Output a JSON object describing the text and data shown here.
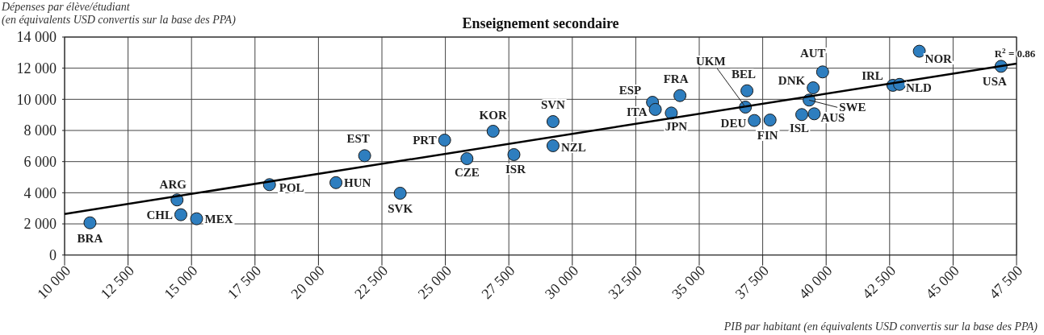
{
  "chart_data": {
    "type": "scatter",
    "title": "Enseignement secondaire",
    "ylabel": "Dépenses par élève/étudiant\n(en équivalents USD convertis sur la base des PPA)",
    "xlabel": "PIB par habitant (en équivalents USD convertis sur la base des PPA)",
    "xlim": [
      10000,
      47500
    ],
    "xticks": [
      {
        "value": 10000,
        "label": "10 000"
      },
      {
        "value": 12500,
        "label": "12 500"
      },
      {
        "value": 15000,
        "label": "15 000"
      },
      {
        "value": 17500,
        "label": "17 500"
      },
      {
        "value": 20000,
        "label": "20 000"
      },
      {
        "value": 22500,
        "label": "22 500"
      },
      {
        "value": 25000,
        "label": "25 000"
      },
      {
        "value": 27500,
        "label": "27 500"
      },
      {
        "value": 30000,
        "label": "30 000"
      },
      {
        "value": 32500,
        "label": "32 500"
      },
      {
        "value": 35000,
        "label": "35 000"
      },
      {
        "value": 37500,
        "label": "37 500"
      },
      {
        "value": 40000,
        "label": "40 000"
      },
      {
        "value": 42500,
        "label": "42 500"
      },
      {
        "value": 45000,
        "label": "45 000"
      },
      {
        "value": 47500,
        "label": "47 500"
      }
    ],
    "ylim": [
      0,
      14000
    ],
    "yticks": [
      0,
      {
        "value": 2000,
        "label": "2 000"
      },
      {
        "value": 4000,
        "label": "4 000"
      },
      {
        "value": 6000,
        "label": "6 000"
      },
      {
        "value": 8000,
        "label": "8 000"
      },
      {
        "value": 10000,
        "label": "10 000"
      },
      {
        "value": 12000,
        "label": "12 000"
      },
      {
        "value": 14000,
        "label": "14 000"
      }
    ],
    "grid": true,
    "series": [
      {
        "color": "#2e7ebf",
        "marker": "circle",
        "x": [
          11000,
          14430,
          14580,
          15200,
          18070,
          20690,
          21820,
          23220,
          24970,
          25850,
          26880,
          27700,
          29240,
          29240,
          33160,
          33270,
          33900,
          34240,
          36880,
          36820,
          37170,
          37790,
          39040,
          39530,
          39330,
          39490,
          39860,
          42630,
          42890,
          43670,
          46890
        ],
        "values": [
          2070,
          3540,
          2590,
          2330,
          4520,
          4650,
          6380,
          3970,
          7380,
          6190,
          7950,
          6450,
          8570,
          7020,
          9810,
          9350,
          9120,
          10240,
          10550,
          9500,
          8640,
          8670,
          9020,
          9070,
          9950,
          10740,
          11760,
          10900,
          10960,
          13090,
          12120
        ]
      },
      {
        "type": "line",
        "color": "#000000",
        "x": [
          10000,
          47500
        ],
        "values": [
          2640,
          12290
        ]
      }
    ],
    "annotations": [
      {
        "text": "BRA",
        "x": 11000,
        "y": 2070
      },
      {
        "text": "ARG",
        "x": 14430,
        "y": 3540
      },
      {
        "text": "CHL",
        "x": 14580,
        "y": 2590
      },
      {
        "text": "MEX",
        "x": 15200,
        "y": 2330
      },
      {
        "text": "POL",
        "x": 18070,
        "y": 4520
      },
      {
        "text": "HUN",
        "x": 20690,
        "y": 4650
      },
      {
        "text": "EST",
        "x": 21820,
        "y": 6380
      },
      {
        "text": "SVK",
        "x": 23220,
        "y": 3970
      },
      {
        "text": "PRT",
        "x": 24970,
        "y": 7380
      },
      {
        "text": "CZE",
        "x": 25850,
        "y": 6190
      },
      {
        "text": "KOR",
        "x": 26880,
        "y": 7950
      },
      {
        "text": "ISR",
        "x": 27700,
        "y": 6450
      },
      {
        "text": "SVN",
        "x": 29240,
        "y": 8570
      },
      {
        "text": "NZL",
        "x": 29240,
        "y": 7020
      },
      {
        "text": "ESP",
        "x": 33160,
        "y": 9810
      },
      {
        "text": "ITA",
        "x": 33270,
        "y": 9350
      },
      {
        "text": "JPN",
        "x": 33900,
        "y": 9120
      },
      {
        "text": "FRA",
        "x": 34240,
        "y": 10240
      },
      {
        "text": "BEL",
        "x": 36880,
        "y": 10550
      },
      {
        "text": "UKM",
        "x": 36820,
        "y": 9500
      },
      {
        "text": "DEU",
        "x": 37170,
        "y": 8640
      },
      {
        "text": "FIN",
        "x": 37790,
        "y": 8670
      },
      {
        "text": "ISL",
        "x": 39040,
        "y": 9020
      },
      {
        "text": "AUS",
        "x": 39530,
        "y": 9070
      },
      {
        "text": "SWE",
        "x": 39330,
        "y": 9950
      },
      {
        "text": "DNK",
        "x": 39490,
        "y": 10740
      },
      {
        "text": "AUT",
        "x": 39860,
        "y": 11760
      },
      {
        "text": "IRL",
        "x": 42630,
        "y": 10900
      },
      {
        "text": "NLD",
        "x": 42890,
        "y": 10960
      },
      {
        "text": "NOR",
        "x": 43670,
        "y": 13090
      },
      {
        "text": "USA",
        "x": 46890,
        "y": 12120
      },
      "R$^{2}$ = 0.86"
    ]
  }
}
